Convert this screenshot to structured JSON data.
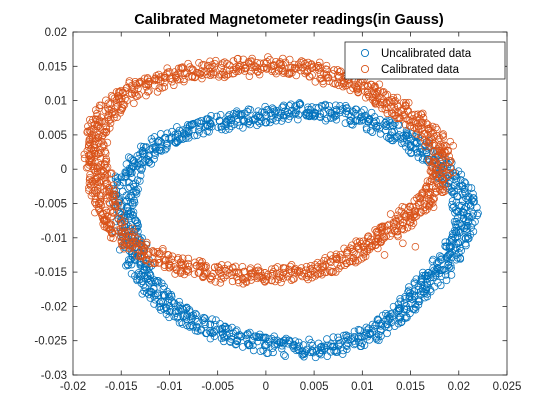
{
  "chart_data": {
    "type": "scatter",
    "title": "Calibrated Magnetometer readings(in Gauss)",
    "xlabel": "",
    "ylabel": "",
    "xlim": [
      -0.02,
      0.025
    ],
    "ylim": [
      -0.03,
      0.02
    ],
    "xticks": [
      "-0.02",
      "-0.015",
      "-0.01",
      "-0.005",
      "0",
      "0.005",
      "0.01",
      "0.015",
      "0.02",
      "0.025"
    ],
    "yticks": [
      "0.02",
      "0.015",
      "0.01",
      "0.005",
      "0",
      "-0.005",
      "-0.01",
      "-0.015",
      "-0.02",
      "-0.025",
      "-0.03"
    ],
    "grid": false,
    "marker": "open-circle",
    "legend": {
      "placement": "top-right"
    },
    "series": [
      {
        "name": "Uncalibrated data",
        "color": "#0072BD",
        "shape": "ellipse",
        "center": [
          0.0027,
          -0.0083
        ],
        "radius": [
          0.0175,
          0.0172
        ],
        "thickness": 0.0012,
        "outliers": [
          [
            0.0195,
            -0.0055
          ],
          [
            0.0205,
            -0.0072
          ],
          [
            0.0215,
            -0.0065
          ],
          [
            0.0203,
            -0.0082
          ]
        ]
      },
      {
        "name": "Calibrated data",
        "color": "#D95319",
        "shape": "ellipse",
        "center": [
          -0.0005,
          0.0
        ],
        "radius": [
          0.0178,
          0.0153
        ],
        "thickness": 0.0012,
        "outliers": [
          [
            0.0123,
            -0.0125
          ],
          [
            0.0142,
            -0.0108
          ],
          [
            0.0155,
            -0.0113
          ],
          [
            0.0137,
            -0.0098
          ]
        ]
      }
    ]
  }
}
